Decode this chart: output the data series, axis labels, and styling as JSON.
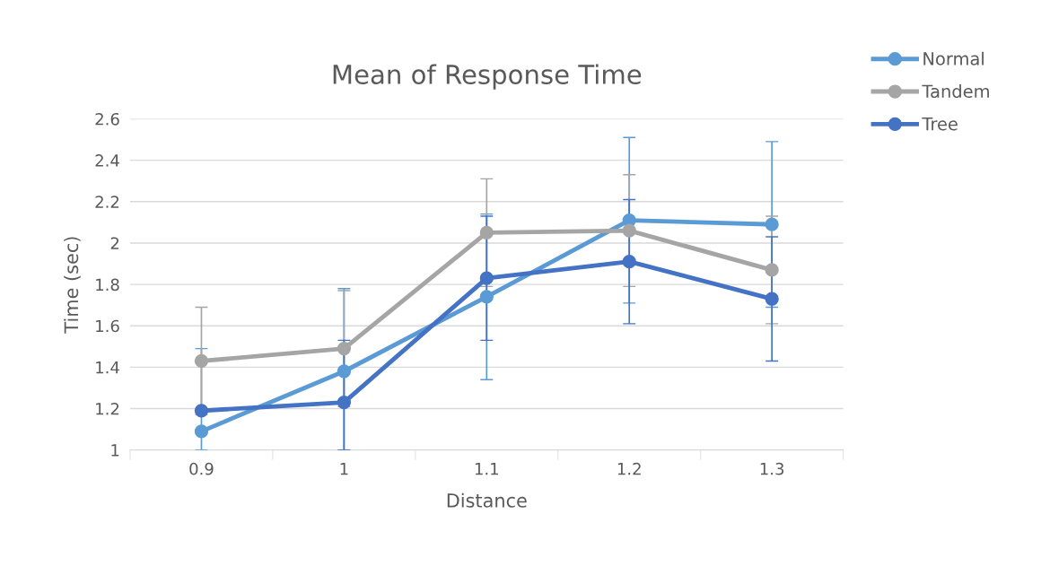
{
  "chart_data": {
    "type": "line",
    "title": "Mean of Response Time",
    "xlabel": "Distance",
    "ylabel": "Time (sec)",
    "categories": [
      "0.9",
      "1",
      "1.1",
      "1.2",
      "1.3"
    ],
    "series": [
      {
        "name": "Normal",
        "color": "#5b9bd5",
        "values": [
          1.09,
          1.38,
          1.74,
          2.11,
          2.09
        ],
        "errors": [
          [
            1,
            1.49
          ],
          [
            1,
            1.78
          ],
          0.4,
          0.4,
          0.4
        ]
      },
      {
        "name": "Tandem",
        "color": "#a5a5a5",
        "values": [
          1.43,
          1.49,
          2.05,
          2.06,
          1.87
        ],
        "errors": [
          0.26,
          0.28,
          0.26,
          0.27,
          0.26
        ]
      },
      {
        "name": "Tree",
        "color": "#4472c4",
        "values": [
          1.19,
          1.23,
          1.83,
          1.91,
          1.73
        ],
        "errors": [
          null,
          [
            1,
            1.53
          ],
          0.3,
          0.3,
          0.3
        ]
      }
    ],
    "ylim": [
      1,
      2.6
    ],
    "yticks": [
      1,
      1.2,
      1.4,
      1.6,
      1.8,
      2,
      2.2,
      2.4,
      2.6
    ],
    "grid": "y",
    "legend": "top right",
    "marker": "circle",
    "line_style": "solid"
  }
}
